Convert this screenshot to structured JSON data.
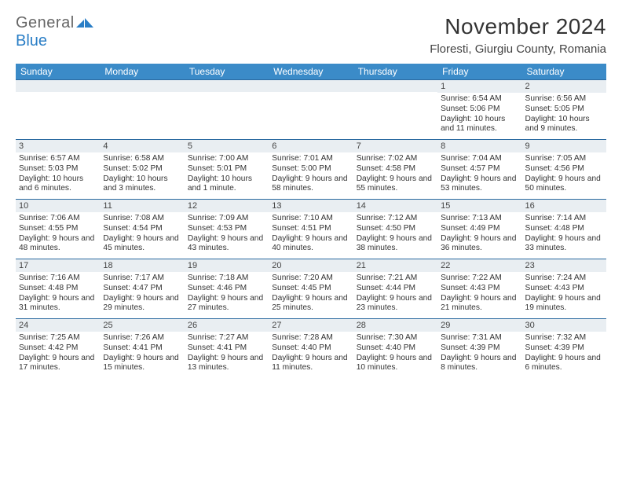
{
  "logo": {
    "general": "General",
    "blue": "Blue"
  },
  "title": "November 2024",
  "location": "Floresti, Giurgiu County, Romania",
  "colors": {
    "header_bg": "#3b8bc8",
    "header_text": "#ffffff",
    "daynum_bg": "#e9eef2",
    "row_border": "#2a6aa0",
    "logo_blue": "#2a7ec6",
    "body_text": "#333333"
  },
  "weekdays": [
    "Sunday",
    "Monday",
    "Tuesday",
    "Wednesday",
    "Thursday",
    "Friday",
    "Saturday"
  ],
  "weeks": [
    [
      {
        "n": "",
        "sr": "",
        "ss": "",
        "dl": ""
      },
      {
        "n": "",
        "sr": "",
        "ss": "",
        "dl": ""
      },
      {
        "n": "",
        "sr": "",
        "ss": "",
        "dl": ""
      },
      {
        "n": "",
        "sr": "",
        "ss": "",
        "dl": ""
      },
      {
        "n": "",
        "sr": "",
        "ss": "",
        "dl": ""
      },
      {
        "n": "1",
        "sr": "Sunrise: 6:54 AM",
        "ss": "Sunset: 5:06 PM",
        "dl": "Daylight: 10 hours and 11 minutes."
      },
      {
        "n": "2",
        "sr": "Sunrise: 6:56 AM",
        "ss": "Sunset: 5:05 PM",
        "dl": "Daylight: 10 hours and 9 minutes."
      }
    ],
    [
      {
        "n": "3",
        "sr": "Sunrise: 6:57 AM",
        "ss": "Sunset: 5:03 PM",
        "dl": "Daylight: 10 hours and 6 minutes."
      },
      {
        "n": "4",
        "sr": "Sunrise: 6:58 AM",
        "ss": "Sunset: 5:02 PM",
        "dl": "Daylight: 10 hours and 3 minutes."
      },
      {
        "n": "5",
        "sr": "Sunrise: 7:00 AM",
        "ss": "Sunset: 5:01 PM",
        "dl": "Daylight: 10 hours and 1 minute."
      },
      {
        "n": "6",
        "sr": "Sunrise: 7:01 AM",
        "ss": "Sunset: 5:00 PM",
        "dl": "Daylight: 9 hours and 58 minutes."
      },
      {
        "n": "7",
        "sr": "Sunrise: 7:02 AM",
        "ss": "Sunset: 4:58 PM",
        "dl": "Daylight: 9 hours and 55 minutes."
      },
      {
        "n": "8",
        "sr": "Sunrise: 7:04 AM",
        "ss": "Sunset: 4:57 PM",
        "dl": "Daylight: 9 hours and 53 minutes."
      },
      {
        "n": "9",
        "sr": "Sunrise: 7:05 AM",
        "ss": "Sunset: 4:56 PM",
        "dl": "Daylight: 9 hours and 50 minutes."
      }
    ],
    [
      {
        "n": "10",
        "sr": "Sunrise: 7:06 AM",
        "ss": "Sunset: 4:55 PM",
        "dl": "Daylight: 9 hours and 48 minutes."
      },
      {
        "n": "11",
        "sr": "Sunrise: 7:08 AM",
        "ss": "Sunset: 4:54 PM",
        "dl": "Daylight: 9 hours and 45 minutes."
      },
      {
        "n": "12",
        "sr": "Sunrise: 7:09 AM",
        "ss": "Sunset: 4:53 PM",
        "dl": "Daylight: 9 hours and 43 minutes."
      },
      {
        "n": "13",
        "sr": "Sunrise: 7:10 AM",
        "ss": "Sunset: 4:51 PM",
        "dl": "Daylight: 9 hours and 40 minutes."
      },
      {
        "n": "14",
        "sr": "Sunrise: 7:12 AM",
        "ss": "Sunset: 4:50 PM",
        "dl": "Daylight: 9 hours and 38 minutes."
      },
      {
        "n": "15",
        "sr": "Sunrise: 7:13 AM",
        "ss": "Sunset: 4:49 PM",
        "dl": "Daylight: 9 hours and 36 minutes."
      },
      {
        "n": "16",
        "sr": "Sunrise: 7:14 AM",
        "ss": "Sunset: 4:48 PM",
        "dl": "Daylight: 9 hours and 33 minutes."
      }
    ],
    [
      {
        "n": "17",
        "sr": "Sunrise: 7:16 AM",
        "ss": "Sunset: 4:48 PM",
        "dl": "Daylight: 9 hours and 31 minutes."
      },
      {
        "n": "18",
        "sr": "Sunrise: 7:17 AM",
        "ss": "Sunset: 4:47 PM",
        "dl": "Daylight: 9 hours and 29 minutes."
      },
      {
        "n": "19",
        "sr": "Sunrise: 7:18 AM",
        "ss": "Sunset: 4:46 PM",
        "dl": "Daylight: 9 hours and 27 minutes."
      },
      {
        "n": "20",
        "sr": "Sunrise: 7:20 AM",
        "ss": "Sunset: 4:45 PM",
        "dl": "Daylight: 9 hours and 25 minutes."
      },
      {
        "n": "21",
        "sr": "Sunrise: 7:21 AM",
        "ss": "Sunset: 4:44 PM",
        "dl": "Daylight: 9 hours and 23 minutes."
      },
      {
        "n": "22",
        "sr": "Sunrise: 7:22 AM",
        "ss": "Sunset: 4:43 PM",
        "dl": "Daylight: 9 hours and 21 minutes."
      },
      {
        "n": "23",
        "sr": "Sunrise: 7:24 AM",
        "ss": "Sunset: 4:43 PM",
        "dl": "Daylight: 9 hours and 19 minutes."
      }
    ],
    [
      {
        "n": "24",
        "sr": "Sunrise: 7:25 AM",
        "ss": "Sunset: 4:42 PM",
        "dl": "Daylight: 9 hours and 17 minutes."
      },
      {
        "n": "25",
        "sr": "Sunrise: 7:26 AM",
        "ss": "Sunset: 4:41 PM",
        "dl": "Daylight: 9 hours and 15 minutes."
      },
      {
        "n": "26",
        "sr": "Sunrise: 7:27 AM",
        "ss": "Sunset: 4:41 PM",
        "dl": "Daylight: 9 hours and 13 minutes."
      },
      {
        "n": "27",
        "sr": "Sunrise: 7:28 AM",
        "ss": "Sunset: 4:40 PM",
        "dl": "Daylight: 9 hours and 11 minutes."
      },
      {
        "n": "28",
        "sr": "Sunrise: 7:30 AM",
        "ss": "Sunset: 4:40 PM",
        "dl": "Daylight: 9 hours and 10 minutes."
      },
      {
        "n": "29",
        "sr": "Sunrise: 7:31 AM",
        "ss": "Sunset: 4:39 PM",
        "dl": "Daylight: 9 hours and 8 minutes."
      },
      {
        "n": "30",
        "sr": "Sunrise: 7:32 AM",
        "ss": "Sunset: 4:39 PM",
        "dl": "Daylight: 9 hours and 6 minutes."
      }
    ]
  ]
}
